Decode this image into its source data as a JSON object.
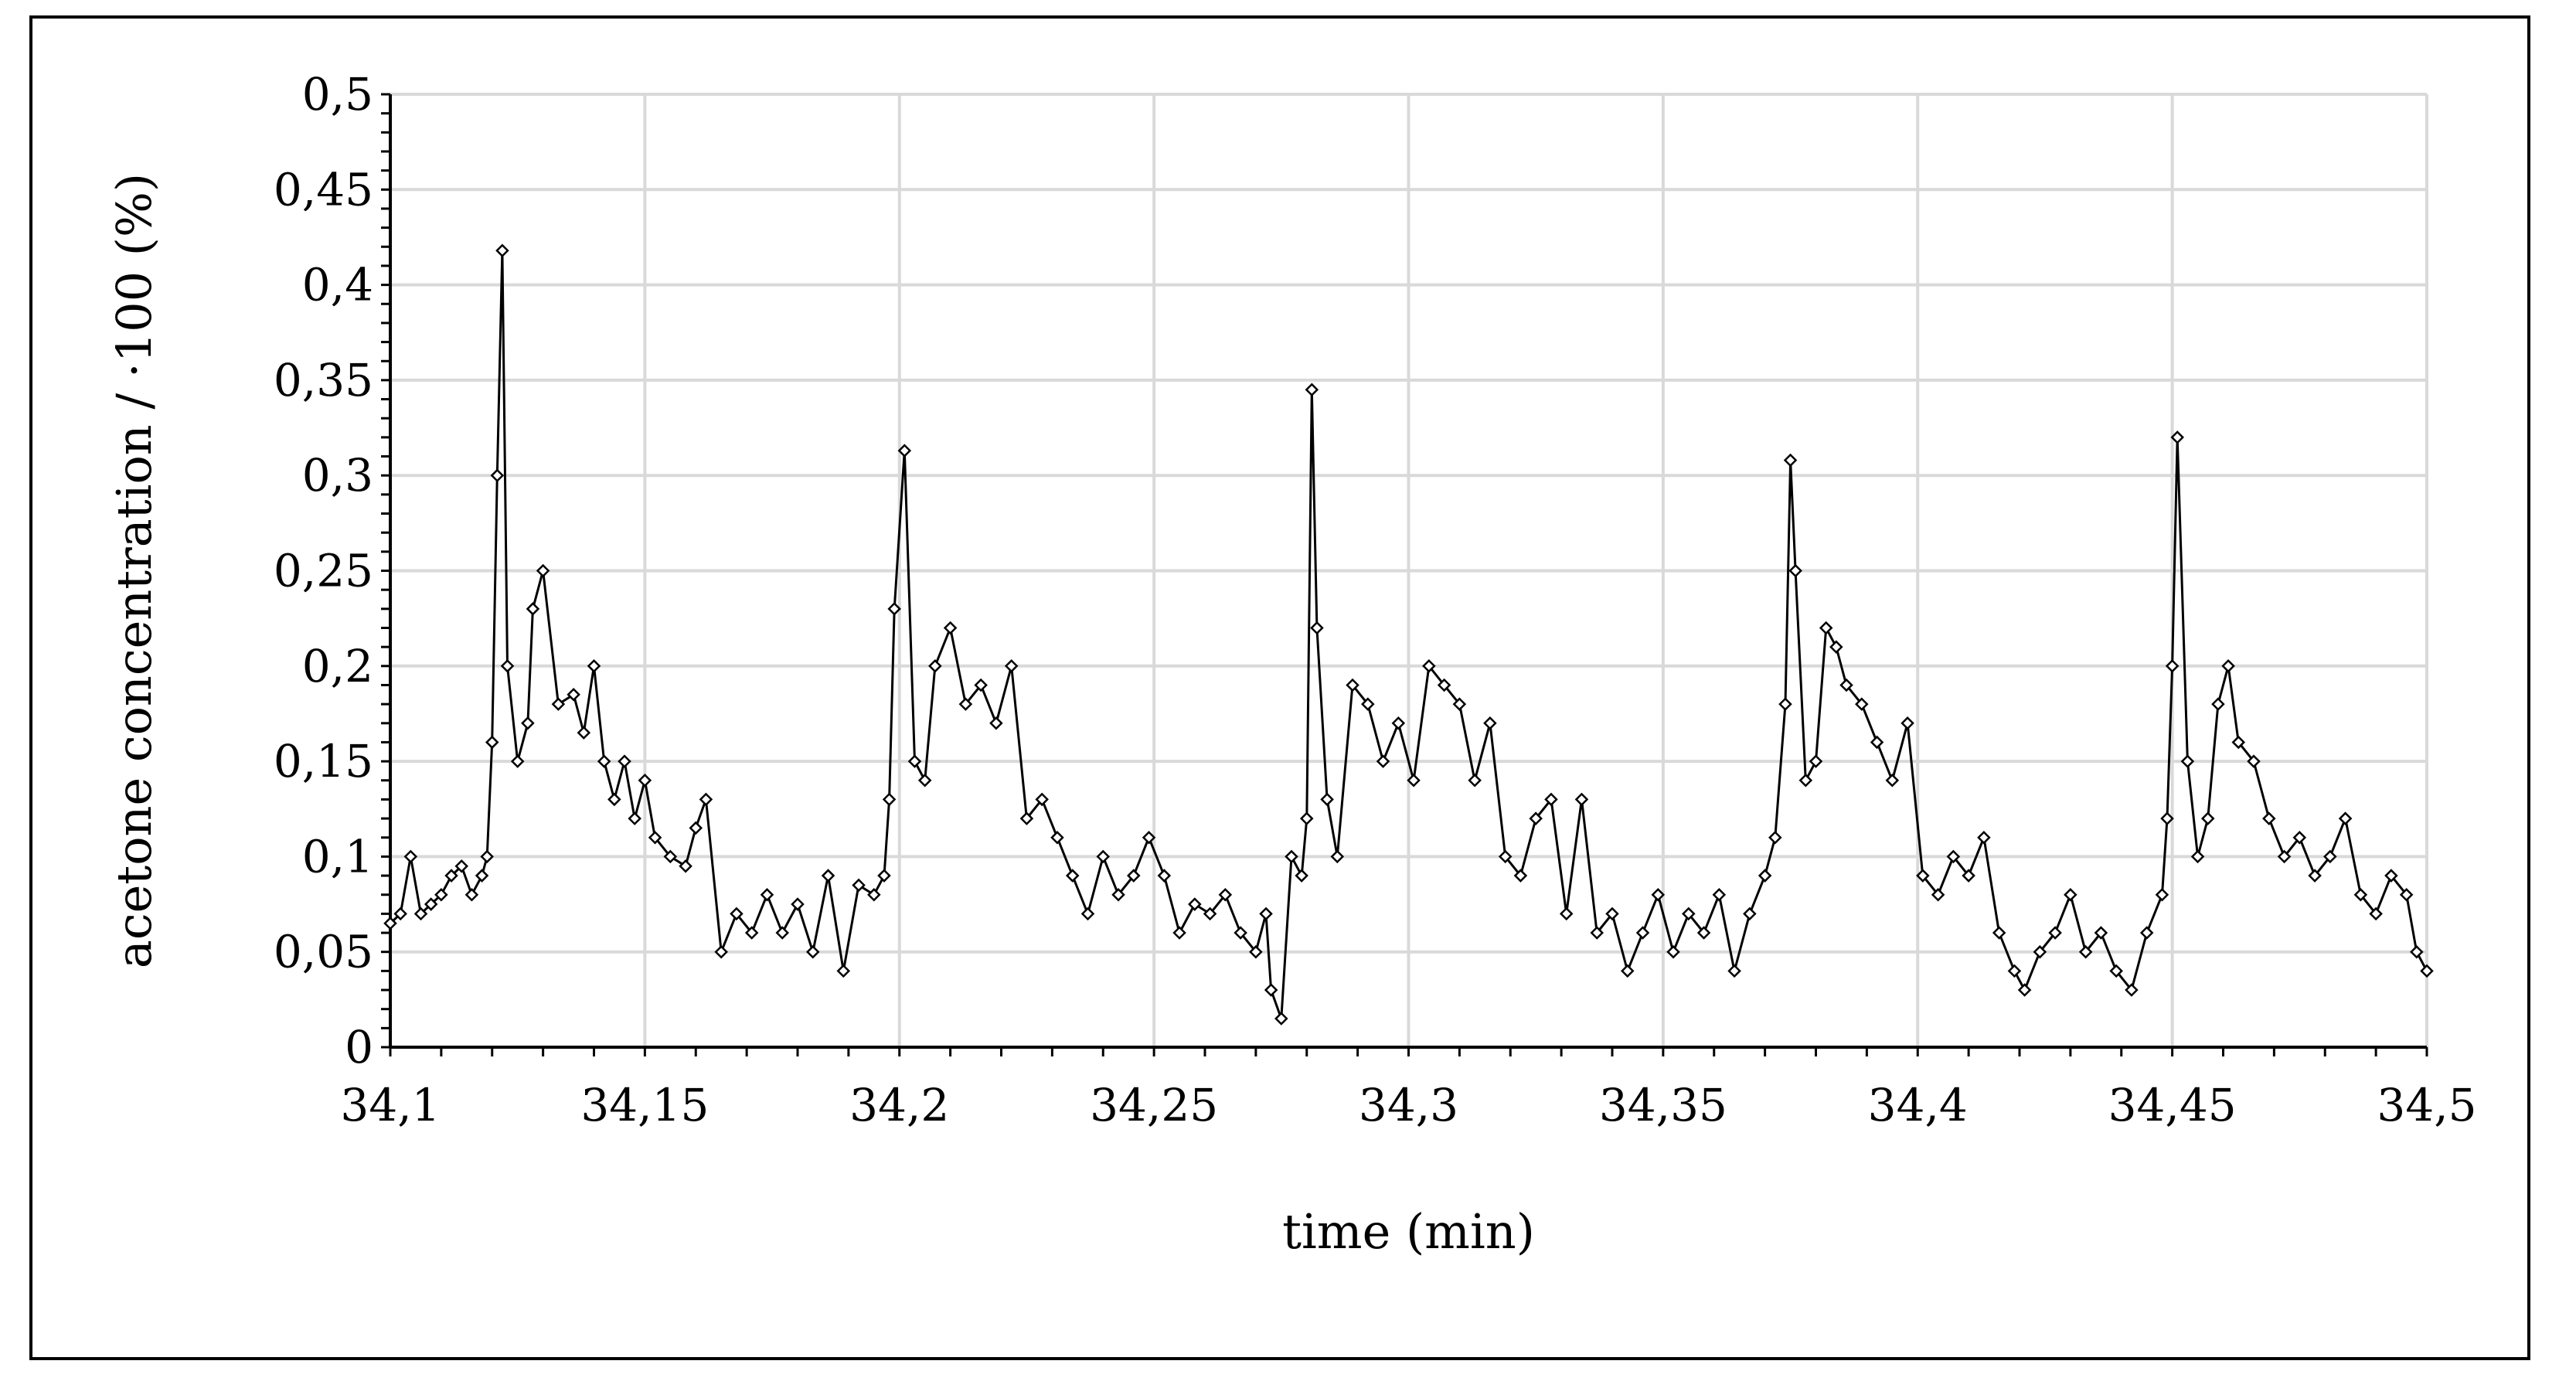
{
  "chart_data": {
    "type": "line",
    "title": "",
    "xlabel": "time (min)",
    "ylabel": "acetone concentration / ·100 (%)",
    "xlim": [
      34.1,
      34.5
    ],
    "ylim": [
      0,
      0.5
    ],
    "x_ticks": [
      34.1,
      34.15,
      34.2,
      34.25,
      34.3,
      34.35,
      34.4,
      34.45,
      34.5
    ],
    "x_tick_labels": [
      "34,1",
      "34,15",
      "34,2",
      "34,25",
      "34,3",
      "34,35",
      "34,4",
      "34,45",
      "34,5"
    ],
    "y_ticks": [
      0,
      0.05,
      0.1,
      0.15,
      0.2,
      0.25,
      0.3,
      0.35,
      0.4,
      0.45,
      0.5
    ],
    "y_tick_labels": [
      "0",
      "0,05",
      "0,1",
      "0,15",
      "0,2",
      "0,25",
      "0,3",
      "0,35",
      "0,4",
      "0,45",
      "0,5"
    ],
    "grid": true,
    "legend": false,
    "line_color": "#000000",
    "grid_color": "#d9d9d9",
    "marker": "open-diamond",
    "series": [
      {
        "x": [
          34.1,
          34.102,
          34.104,
          34.106,
          34.108,
          34.11,
          34.112,
          34.114,
          34.116,
          34.118,
          34.119,
          34.12,
          34.121,
          34.122,
          34.123,
          34.125,
          34.127,
          34.128,
          34.13,
          34.133,
          34.136,
          34.138,
          34.14,
          34.142,
          34.144,
          34.146,
          34.148,
          34.15,
          34.152,
          34.155,
          34.158,
          34.16,
          34.162,
          34.165,
          34.168,
          34.171,
          34.174,
          34.177,
          34.18,
          34.183,
          34.186,
          34.189,
          34.192,
          34.195,
          34.197,
          34.198,
          34.199,
          34.201,
          34.203,
          34.205,
          34.207,
          34.21,
          34.213,
          34.216,
          34.219,
          34.222,
          34.225,
          34.228,
          34.231,
          34.234,
          34.237,
          34.24,
          34.243,
          34.246,
          34.249,
          34.252,
          34.255,
          34.258,
          34.261,
          34.264,
          34.267,
          34.27,
          34.272,
          34.273,
          34.275,
          34.277,
          34.279,
          34.28,
          34.281,
          34.282,
          34.284,
          34.286,
          34.289,
          34.292,
          34.295,
          34.298,
          34.301,
          34.304,
          34.307,
          34.31,
          34.313,
          34.316,
          34.319,
          34.322,
          34.325,
          34.328,
          34.331,
          34.334,
          34.337,
          34.34,
          34.343,
          34.346,
          34.349,
          34.352,
          34.355,
          34.358,
          34.361,
          34.364,
          34.367,
          34.37,
          34.372,
          34.374,
          34.375,
          34.376,
          34.378,
          34.38,
          34.382,
          34.384,
          34.386,
          34.389,
          34.392,
          34.395,
          34.398,
          34.401,
          34.404,
          34.407,
          34.41,
          34.413,
          34.416,
          34.419,
          34.421,
          34.424,
          34.427,
          34.43,
          34.433,
          34.436,
          34.439,
          34.442,
          34.445,
          34.448,
          34.449,
          34.45,
          34.451,
          34.453,
          34.455,
          34.457,
          34.459,
          34.461,
          34.463,
          34.466,
          34.469,
          34.472,
          34.475,
          34.478,
          34.481,
          34.484,
          34.487,
          34.49,
          34.493,
          34.496,
          34.498,
          34.5
        ],
        "y": [
          0.065,
          0.07,
          0.1,
          0.07,
          0.075,
          0.08,
          0.09,
          0.095,
          0.08,
          0.09,
          0.1,
          0.16,
          0.3,
          0.418,
          0.2,
          0.15,
          0.17,
          0.23,
          0.25,
          0.18,
          0.185,
          0.165,
          0.2,
          0.15,
          0.13,
          0.15,
          0.12,
          0.14,
          0.11,
          0.1,
          0.095,
          0.115,
          0.13,
          0.05,
          0.07,
          0.06,
          0.08,
          0.06,
          0.075,
          0.05,
          0.09,
          0.04,
          0.085,
          0.08,
          0.09,
          0.13,
          0.23,
          0.313,
          0.15,
          0.14,
          0.2,
          0.22,
          0.18,
          0.19,
          0.17,
          0.2,
          0.12,
          0.13,
          0.11,
          0.09,
          0.07,
          0.1,
          0.08,
          0.09,
          0.11,
          0.09,
          0.06,
          0.075,
          0.07,
          0.08,
          0.06,
          0.05,
          0.07,
          0.03,
          0.015,
          0.1,
          0.09,
          0.12,
          0.345,
          0.22,
          0.13,
          0.1,
          0.19,
          0.18,
          0.15,
          0.17,
          0.14,
          0.2,
          0.19,
          0.18,
          0.14,
          0.17,
          0.1,
          0.09,
          0.12,
          0.13,
          0.07,
          0.13,
          0.06,
          0.07,
          0.04,
          0.06,
          0.08,
          0.05,
          0.07,
          0.06,
          0.08,
          0.04,
          0.07,
          0.09,
          0.11,
          0.18,
          0.308,
          0.25,
          0.14,
          0.15,
          0.22,
          0.21,
          0.19,
          0.18,
          0.16,
          0.14,
          0.17,
          0.09,
          0.08,
          0.1,
          0.09,
          0.11,
          0.06,
          0.04,
          0.03,
          0.05,
          0.06,
          0.08,
          0.05,
          0.06,
          0.04,
          0.03,
          0.06,
          0.08,
          0.12,
          0.2,
          0.32,
          0.15,
          0.1,
          0.12,
          0.18,
          0.2,
          0.16,
          0.15,
          0.12,
          0.1,
          0.11,
          0.09,
          0.1,
          0.12,
          0.08,
          0.07,
          0.09,
          0.08,
          0.05,
          0.04
        ]
      }
    ]
  }
}
